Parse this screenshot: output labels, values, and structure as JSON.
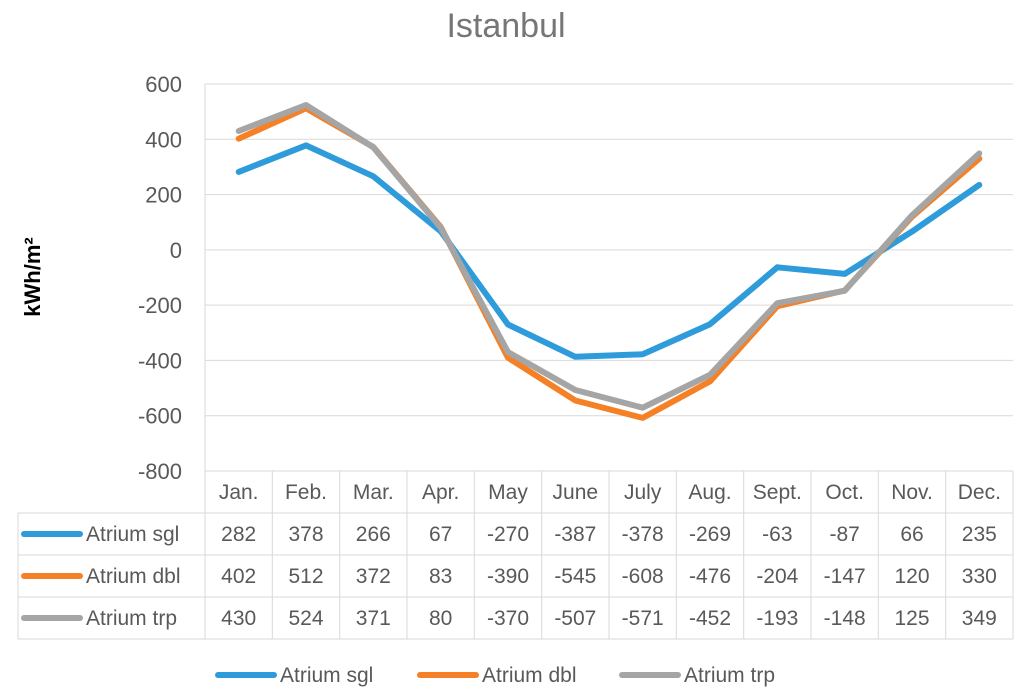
{
  "chart_data": {
    "type": "line",
    "title": "Istanbul",
    "ylabel": "kWh/m²",
    "ylim": [
      -800,
      600
    ],
    "yticks": [
      600,
      400,
      200,
      0,
      -200,
      -400,
      -600,
      -800
    ],
    "categories": [
      "Jan.",
      "Feb.",
      "Mar.",
      "Apr.",
      "May",
      "June",
      "July",
      "Aug.",
      "Sept.",
      "Oct.",
      "Nov.",
      "Dec."
    ],
    "grid": true,
    "data_table": true,
    "legend_position": "bottom",
    "series": [
      {
        "name": "Atrium sgl",
        "color": "#2E9BDA",
        "values": [
          282,
          378,
          266,
          67,
          -270,
          -387,
          -378,
          -269,
          -63,
          -87,
          66,
          235
        ]
      },
      {
        "name": "Atrium dbl",
        "color": "#F58025",
        "values": [
          402,
          512,
          372,
          83,
          -390,
          -545,
          -608,
          -476,
          -204,
          -147,
          120,
          330
        ]
      },
      {
        "name": "Atrium trp",
        "color": "#A5A5A5",
        "values": [
          430,
          524,
          371,
          80,
          -370,
          -507,
          -571,
          -452,
          -193,
          -148,
          125,
          349
        ]
      }
    ]
  }
}
